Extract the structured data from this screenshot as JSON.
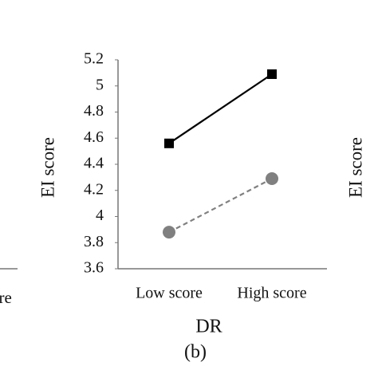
{
  "chart_data": {
    "type": "line",
    "x_label": "DR",
    "y_label": "EI score",
    "caption": "(b)",
    "categories": [
      "Low score",
      "High score"
    ],
    "series": [
      {
        "color": "#000000",
        "line_style": "solid",
        "marker": "square",
        "values": [
          4.56,
          5.09
        ]
      },
      {
        "color": "#808080",
        "line_style": "dashed",
        "marker": "circle",
        "values": [
          3.88,
          4.29
        ]
      }
    ],
    "ylim": [
      3.6,
      5.2
    ],
    "yticks": [
      3.6,
      3.8,
      4,
      4.2,
      4.4,
      4.6,
      4.8,
      5,
      5.2
    ],
    "grid": false
  },
  "neighbor_fragments": {
    "left_tick_label": "ore",
    "right_y_label": "EI score"
  }
}
